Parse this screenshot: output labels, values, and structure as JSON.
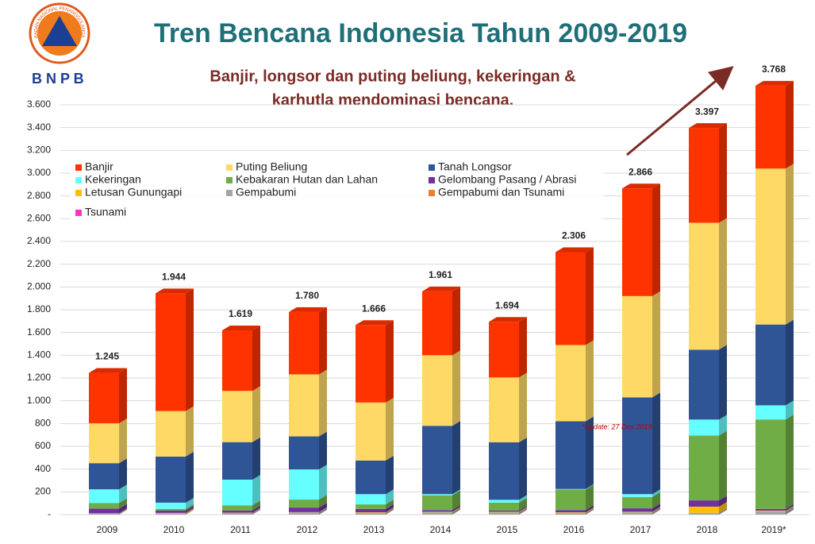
{
  "logo_text": "BADAN NASIONAL PENANGGULANGAN BENCANA",
  "brand": "B N P B",
  "chart_data": {
    "type": "stacked-bar",
    "title": "Tren Bencana Indonesia Tahun 2009-2019",
    "subtitle": [
      "Banjir, longsor dan puting beliung, kekeringan &",
      "karhutla mendominasi bencana."
    ],
    "annotation": "*Update: 27 Des 2019",
    "categories": [
      "2009",
      "2010",
      "2011",
      "2012",
      "2013",
      "2014",
      "2015",
      "2016",
      "2017",
      "2018",
      "2019*"
    ],
    "ylim": [
      0,
      3600
    ],
    "yticks": [
      {
        "value": 0,
        "label": "-"
      },
      {
        "value": 200,
        "label": "200"
      },
      {
        "value": 400,
        "label": "400"
      },
      {
        "value": 600,
        "label": "600"
      },
      {
        "value": 800,
        "label": "800"
      },
      {
        "value": 1000,
        "label": "1.000"
      },
      {
        "value": 1200,
        "label": "1.200"
      },
      {
        "value": 1400,
        "label": "1.400"
      },
      {
        "value": 1600,
        "label": "1.600"
      },
      {
        "value": 1800,
        "label": "1.800"
      },
      {
        "value": 2000,
        "label": "2.000"
      },
      {
        "value": 2200,
        "label": "2.200"
      },
      {
        "value": 2400,
        "label": "2.400"
      },
      {
        "value": 2600,
        "label": "2.600"
      },
      {
        "value": 2800,
        "label": "2.800"
      },
      {
        "value": 3000,
        "label": "3.000"
      },
      {
        "value": 3200,
        "label": "3.200"
      },
      {
        "value": 3400,
        "label": "3.400"
      },
      {
        "value": 3600,
        "label": "3.600"
      }
    ],
    "grid": true,
    "series": [
      {
        "name": "Banjir",
        "color": "#ff3300",
        "values": [
          443,
          1034,
          532,
          548,
          681,
          561,
          489,
          816,
          946,
          833,
          728
        ]
      },
      {
        "name": "Puting Beliung",
        "color": "#ffd966",
        "values": [
          350,
          400,
          450,
          545,
          510,
          620,
          570,
          670,
          890,
          1115,
          1370
        ]
      },
      {
        "name": "Tanah Longsor",
        "color": "#2f5597",
        "values": [
          230,
          405,
          330,
          290,
          295,
          600,
          505,
          595,
          850,
          614,
          710
        ]
      },
      {
        "name": "Kekeringan",
        "color": "#66ffff",
        "values": [
          120,
          55,
          225,
          265,
          90,
          10,
          25,
          5,
          25,
          140,
          124
        ]
      },
      {
        "name": "Kebakaran Hutan dan Lahan",
        "color": "#70ad47",
        "values": [
          50,
          15,
          45,
          70,
          40,
          130,
          70,
          180,
          100,
          570,
          786
        ]
      },
      {
        "name": "Gelombang Pasang / Abrasi",
        "color": "#7030a0",
        "values": [
          40,
          20,
          20,
          40,
          30,
          15,
          10,
          20,
          30,
          55,
          15
        ]
      },
      {
        "name": "Letusan Gunungapi",
        "color": "#ffc000",
        "values": [
          2,
          5,
          2,
          2,
          5,
          5,
          5,
          5,
          5,
          54,
          5
        ]
      },
      {
        "name": "Gempabumi",
        "color": "#a6a6a6",
        "values": [
          10,
          10,
          15,
          20,
          15,
          20,
          20,
          15,
          20,
          15,
          30
        ]
      },
      {
        "name": "Gempabumi dan Tsunami",
        "color": "#ed7d31",
        "values": [
          0,
          0,
          0,
          0,
          0,
          0,
          0,
          0,
          0,
          1,
          0
        ]
      },
      {
        "name": "Tsunami",
        "color": "#ff33cc",
        "values": [
          0,
          0,
          0,
          0,
          0,
          0,
          0,
          0,
          0,
          0,
          0
        ]
      }
    ],
    "totals": {
      "values": [
        1245,
        1944,
        1619,
        1780,
        1666,
        1961,
        1694,
        2306,
        2866,
        3397,
        3768
      ],
      "value_labels": [
        "1.245",
        "1.944",
        "1.619",
        "1.780",
        "1.666",
        "1.961",
        "1.694",
        "2.306",
        "2.866",
        "3.397",
        "3.768"
      ]
    }
  }
}
